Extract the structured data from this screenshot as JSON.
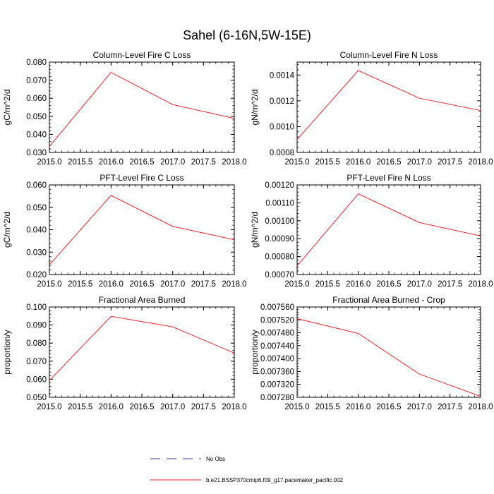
{
  "figure": {
    "title": "Sahel (6-16N,5W-15E)"
  },
  "chart_data": [
    {
      "type": "line",
      "title": "Column-Level Fire C Loss",
      "ylabel": "gC/m^2/d",
      "xlabel": "",
      "xlim": [
        2015.0,
        2018.0
      ],
      "ylim": [
        0.03,
        0.08
      ],
      "xticks": [
        "2015.0",
        "2015.5",
        "2016.0",
        "2016.5",
        "2017.0",
        "2017.5",
        "2018.0"
      ],
      "yticks": [
        "0.030",
        "0.040",
        "0.050",
        "0.060",
        "0.070",
        "0.080"
      ],
      "series": [
        {
          "name": "b.e21.BSSP370cmip6.f09_g17.pacemaker_pacific.002",
          "x": [
            2015,
            2016,
            2017,
            2018
          ],
          "values": [
            0.0333,
            0.0743,
            0.0565,
            0.0488
          ]
        }
      ]
    },
    {
      "type": "line",
      "title": "Column-Level Fire N Loss",
      "ylabel": "gN/m^2/d",
      "xlabel": "",
      "xlim": [
        2015.0,
        2018.0
      ],
      "ylim": [
        0.0008,
        0.0015
      ],
      "xticks": [
        "2015.0",
        "2015.5",
        "2016.0",
        "2016.5",
        "2017.0",
        "2017.5",
        "2018.0"
      ],
      "yticks": [
        "0.0008",
        "0.0010",
        "0.0012",
        "0.0014"
      ],
      "series": [
        {
          "name": "b.e21.BSSP370cmip6.f09_g17.pacemaker_pacific.002",
          "x": [
            2015,
            2016,
            2017,
            2018
          ],
          "values": [
            0.0009,
            0.001435,
            0.00122,
            0.001125
          ]
        }
      ]
    },
    {
      "type": "line",
      "title": "PFT-Level Fire C Loss",
      "ylabel": "gC/m^2/d",
      "xlabel": "",
      "xlim": [
        2015.0,
        2018.0
      ],
      "ylim": [
        0.02,
        0.06
      ],
      "xticks": [
        "2015.0",
        "2015.5",
        "2016.0",
        "2016.5",
        "2017.0",
        "2017.5",
        "2018.0"
      ],
      "yticks": [
        "0.020",
        "0.030",
        "0.040",
        "0.050",
        "0.060"
      ],
      "series": [
        {
          "name": "b.e21.BSSP370cmip6.f09_g17.pacemaker_pacific.002",
          "x": [
            2015,
            2016,
            2017,
            2018
          ],
          "values": [
            0.0243,
            0.0553,
            0.0415,
            0.0355
          ]
        }
      ]
    },
    {
      "type": "line",
      "title": "PFT-Level Fire N Loss",
      "ylabel": "gN/m^2/d",
      "xlabel": "",
      "xlim": [
        2015.0,
        2018.0
      ],
      "ylim": [
        0.0007,
        0.0012
      ],
      "xticks": [
        "2015.0",
        "2015.5",
        "2016.0",
        "2016.5",
        "2017.0",
        "2017.5",
        "2018.0"
      ],
      "yticks": [
        "0.00070",
        "0.00080",
        "0.00090",
        "0.00100",
        "0.00110",
        "0.00120"
      ],
      "series": [
        {
          "name": "b.e21.BSSP370cmip6.f09_g17.pacemaker_pacific.002",
          "x": [
            2015,
            2016,
            2017,
            2018
          ],
          "values": [
            0.000748,
            0.00115,
            0.00099,
            0.000915
          ]
        }
      ]
    },
    {
      "type": "line",
      "title": "Fractional Area Burned",
      "ylabel": "proportion/y",
      "xlabel": "",
      "xlim": [
        2015.0,
        2018.0
      ],
      "ylim": [
        0.05,
        0.1
      ],
      "xticks": [
        "2015.0",
        "2015.5",
        "2016.0",
        "2016.5",
        "2017.0",
        "2017.5",
        "2018.0"
      ],
      "yticks": [
        "0.050",
        "0.060",
        "0.070",
        "0.080",
        "0.090",
        "0.100"
      ],
      "series": [
        {
          "name": "b.e21.BSSP370cmip6.f09_g17.pacemaker_pacific.002",
          "x": [
            2015,
            2016,
            2017,
            2018
          ],
          "values": [
            0.0593,
            0.0948,
            0.089,
            0.0745
          ]
        }
      ]
    },
    {
      "type": "line",
      "title": "Fractional Area Burned - Crop",
      "ylabel": "proportion/y",
      "xlabel": "",
      "xlim": [
        2015.0,
        2018.0
      ],
      "ylim": [
        0.00728,
        0.00756
      ],
      "xticks": [
        "2015.0",
        "2015.5",
        "2016.0",
        "2016.5",
        "2017.0",
        "2017.5",
        "2018.0"
      ],
      "yticks": [
        "0.007280",
        "0.007320",
        "0.007360",
        "0.007400",
        "0.007440",
        "0.007480",
        "0.007520",
        "0.007560"
      ],
      "series": [
        {
          "name": "b.e21.BSSP370cmip6.f09_g17.pacemaker_pacific.002",
          "x": [
            2015,
            2016,
            2017,
            2018
          ],
          "values": [
            0.007524,
            0.007478,
            0.007352,
            0.007283
          ]
        }
      ]
    }
  ],
  "legend": {
    "items": [
      {
        "label": "No Obs",
        "style": "dashed",
        "color": "#4a3a8c"
      },
      {
        "label": "b.e21.BSSP370cmip6.f09_g17.pacemaker_pacific.002",
        "style": "solid",
        "color": "#e8262b"
      }
    ]
  },
  "colors": {
    "series_line": "#e8262b",
    "obs_line": "#4a3a8c",
    "axis": "#000000"
  }
}
